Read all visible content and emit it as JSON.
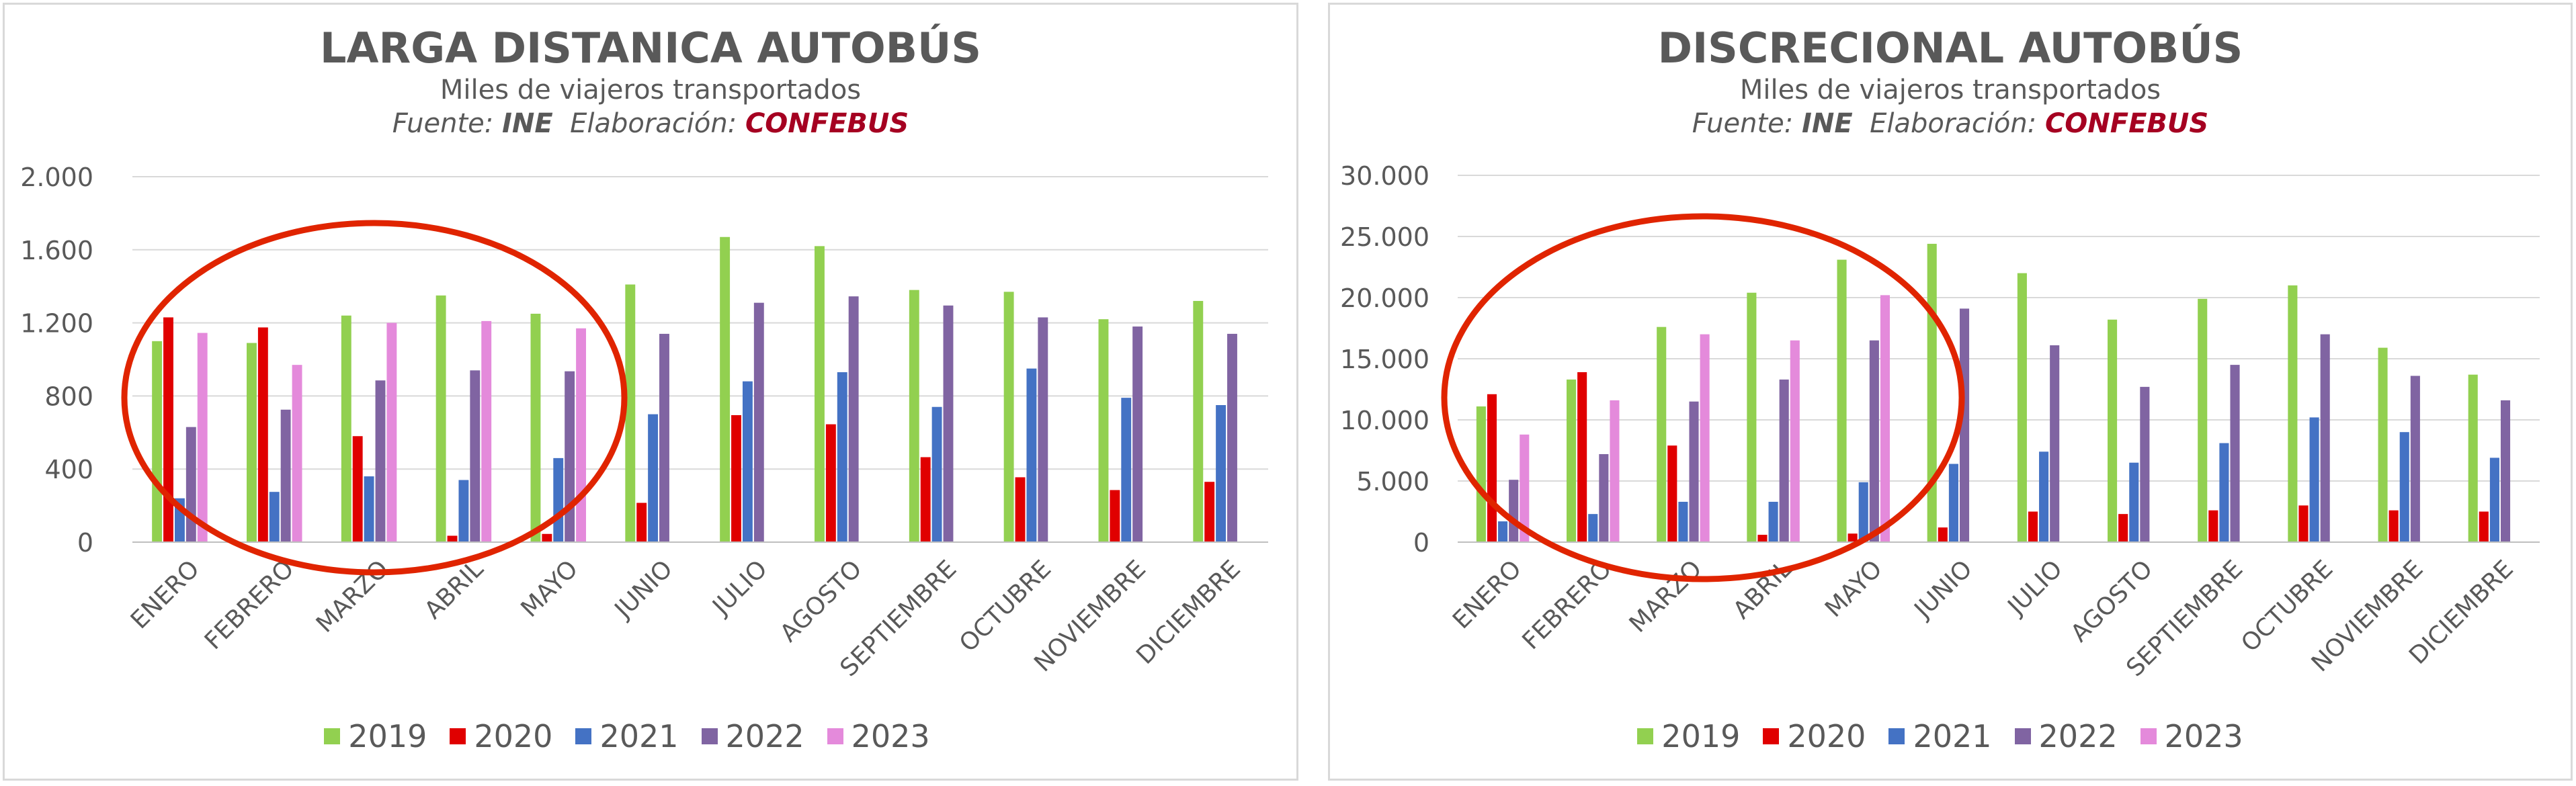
{
  "palette": {
    "2019": "#92d050",
    "2020": "#e00000",
    "2021": "#4472c4",
    "2022": "#8064a2",
    "2023": "#e48adb",
    "grid": "#d9d9d9",
    "axis_text": "#595959",
    "brand": "#a50021",
    "highlight": "#e02400"
  },
  "months": [
    "ENERO",
    "FEBRERO",
    "MARZO",
    "ABRIL",
    "MAYO",
    "JUNIO",
    "JULIO",
    "AGOSTO",
    "SEPTIEMBRE",
    "OCTUBRE",
    "NOVIEMBRE",
    "DICIEMBRE"
  ],
  "chart_data": [
    {
      "type": "bar",
      "title": "LARGA DISTANICA AUTOBÚS",
      "subtitle": "Miles de viajeros transportados",
      "source": {
        "prefix": "Fuente:",
        "name": "INE",
        "elab_prefix": "Elaboración:",
        "elab_name": "CONFEBUS"
      },
      "ylim": [
        0,
        2000
      ],
      "yticks": [
        0,
        400,
        800,
        1200,
        1600,
        2000
      ],
      "ytick_labels": [
        "0",
        "400",
        "800",
        "1.200",
        "1.600",
        "2.000"
      ],
      "grid": true,
      "legend_position": "bottom",
      "highlight": "red ellipse around ENERO–MAYO",
      "categories": [
        "ENERO",
        "FEBRERO",
        "MARZO",
        "ABRIL",
        "MAYO",
        "JUNIO",
        "JULIO",
        "AGOSTO",
        "SEPTIEMBRE",
        "OCTUBRE",
        "NOVIEMBRE",
        "DICIEMBRE"
      ],
      "series": [
        {
          "name": "2019",
          "values": [
            1100,
            1090,
            1240,
            1350,
            1250,
            1410,
            1670,
            1620,
            1380,
            1370,
            1220,
            1320
          ]
        },
        {
          "name": "2020",
          "values": [
            1230,
            1175,
            580,
            35,
            45,
            215,
            695,
            645,
            465,
            355,
            285,
            330
          ]
        },
        {
          "name": "2021",
          "values": [
            240,
            275,
            360,
            340,
            460,
            700,
            880,
            930,
            740,
            950,
            790,
            750
          ]
        },
        {
          "name": "2022",
          "values": [
            630,
            725,
            885,
            940,
            935,
            1140,
            1310,
            1345,
            1295,
            1230,
            1180,
            1140
          ]
        },
        {
          "name": "2023",
          "values": [
            1145,
            970,
            1200,
            1210,
            1170,
            null,
            null,
            null,
            null,
            null,
            null,
            null
          ]
        }
      ]
    },
    {
      "type": "bar",
      "title": "DISCRECIONAL AUTOBÚS",
      "subtitle": "Miles de viajeros transportados",
      "source": {
        "prefix": "Fuente:",
        "name": "INE",
        "elab_prefix": "Elaboración:",
        "elab_name": "CONFEBUS"
      },
      "ylim": [
        0,
        30000
      ],
      "yticks": [
        0,
        5000,
        10000,
        15000,
        20000,
        25000,
        30000
      ],
      "ytick_labels": [
        "0",
        "5.000",
        "10.000",
        "15.000",
        "20.000",
        "25.000",
        "30.000"
      ],
      "grid": true,
      "legend_position": "bottom",
      "highlight": "red ellipse around ENERO–MAYO",
      "categories": [
        "ENERO",
        "FEBRERO",
        "MARZO",
        "ABRIL",
        "MAYO",
        "JUNIO",
        "JULIO",
        "AGOSTO",
        "SEPTIEMBRE",
        "OCTUBRE",
        "NOVIEMBRE",
        "DICIEMBRE"
      ],
      "series": [
        {
          "name": "2019",
          "values": [
            11100,
            13300,
            17600,
            20400,
            23100,
            24400,
            22000,
            18200,
            19900,
            21000,
            15900,
            13700
          ]
        },
        {
          "name": "2020",
          "values": [
            12100,
            13900,
            7900,
            600,
            700,
            1200,
            2500,
            2300,
            2600,
            3000,
            2600,
            2500
          ]
        },
        {
          "name": "2021",
          "values": [
            1700,
            2300,
            3300,
            3300,
            4900,
            6400,
            7400,
            6500,
            8100,
            10200,
            9000,
            6900
          ]
        },
        {
          "name": "2022",
          "values": [
            5100,
            7200,
            11500,
            13300,
            16500,
            19100,
            16100,
            12700,
            14500,
            17000,
            13600,
            11600
          ]
        },
        {
          "name": "2023",
          "values": [
            8800,
            11600,
            17000,
            16500,
            20200,
            null,
            null,
            null,
            null,
            null,
            null,
            null
          ]
        }
      ]
    }
  ]
}
